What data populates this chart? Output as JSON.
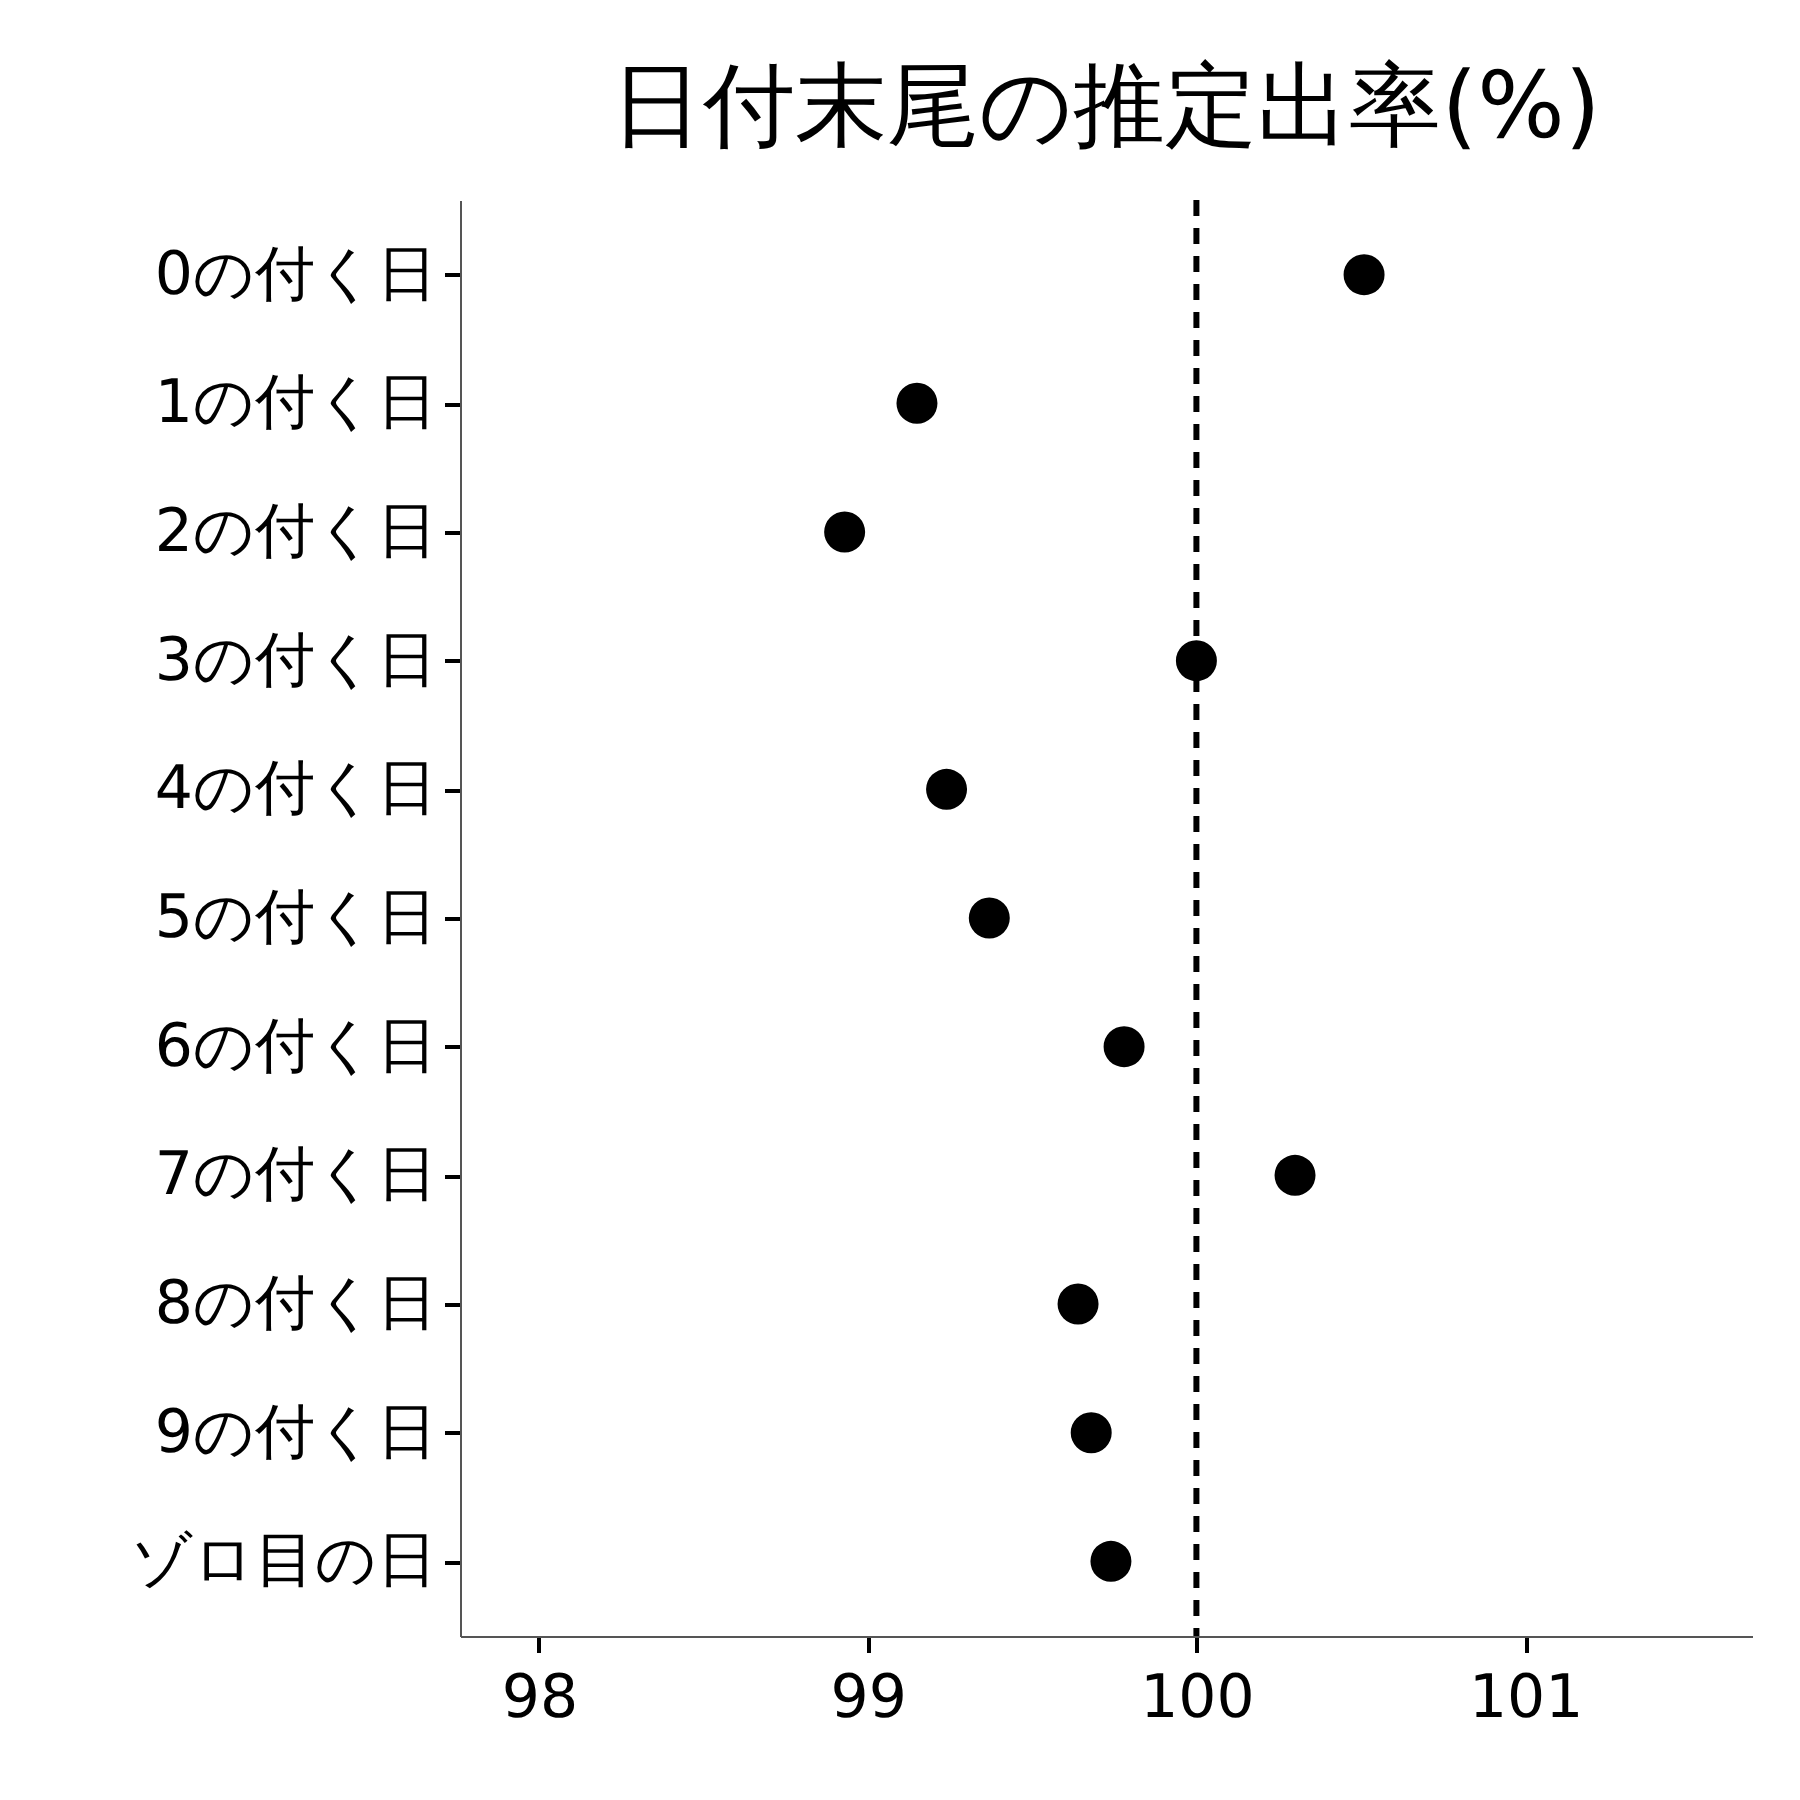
{
  "chart_data": {
    "type": "scatter",
    "title": "日付末尾の推定出率(%)",
    "orientation": "horizontal",
    "categories": [
      "0の付く日",
      "1の付く日",
      "2の付く日",
      "3の付く日",
      "4の付く日",
      "5の付く日",
      "6の付く日",
      "7の付く日",
      "8の付く日",
      "9の付く日",
      "ゾロ目の日"
    ],
    "series": [
      {
        "color": "#000000",
        "values": [
          100.51,
          99.15,
          98.93,
          100.0,
          99.24,
          99.37,
          99.78,
          100.3,
          99.64,
          99.68,
          99.74
        ]
      }
    ],
    "xlim": [
      97.76,
      101.69
    ],
    "xticks": [
      98,
      99,
      100,
      101
    ],
    "grid": false,
    "marker": "circle",
    "ref_lines": [
      {
        "axis": "x",
        "value": 100,
        "line_style": "dashed",
        "color": "#000000"
      }
    ]
  }
}
